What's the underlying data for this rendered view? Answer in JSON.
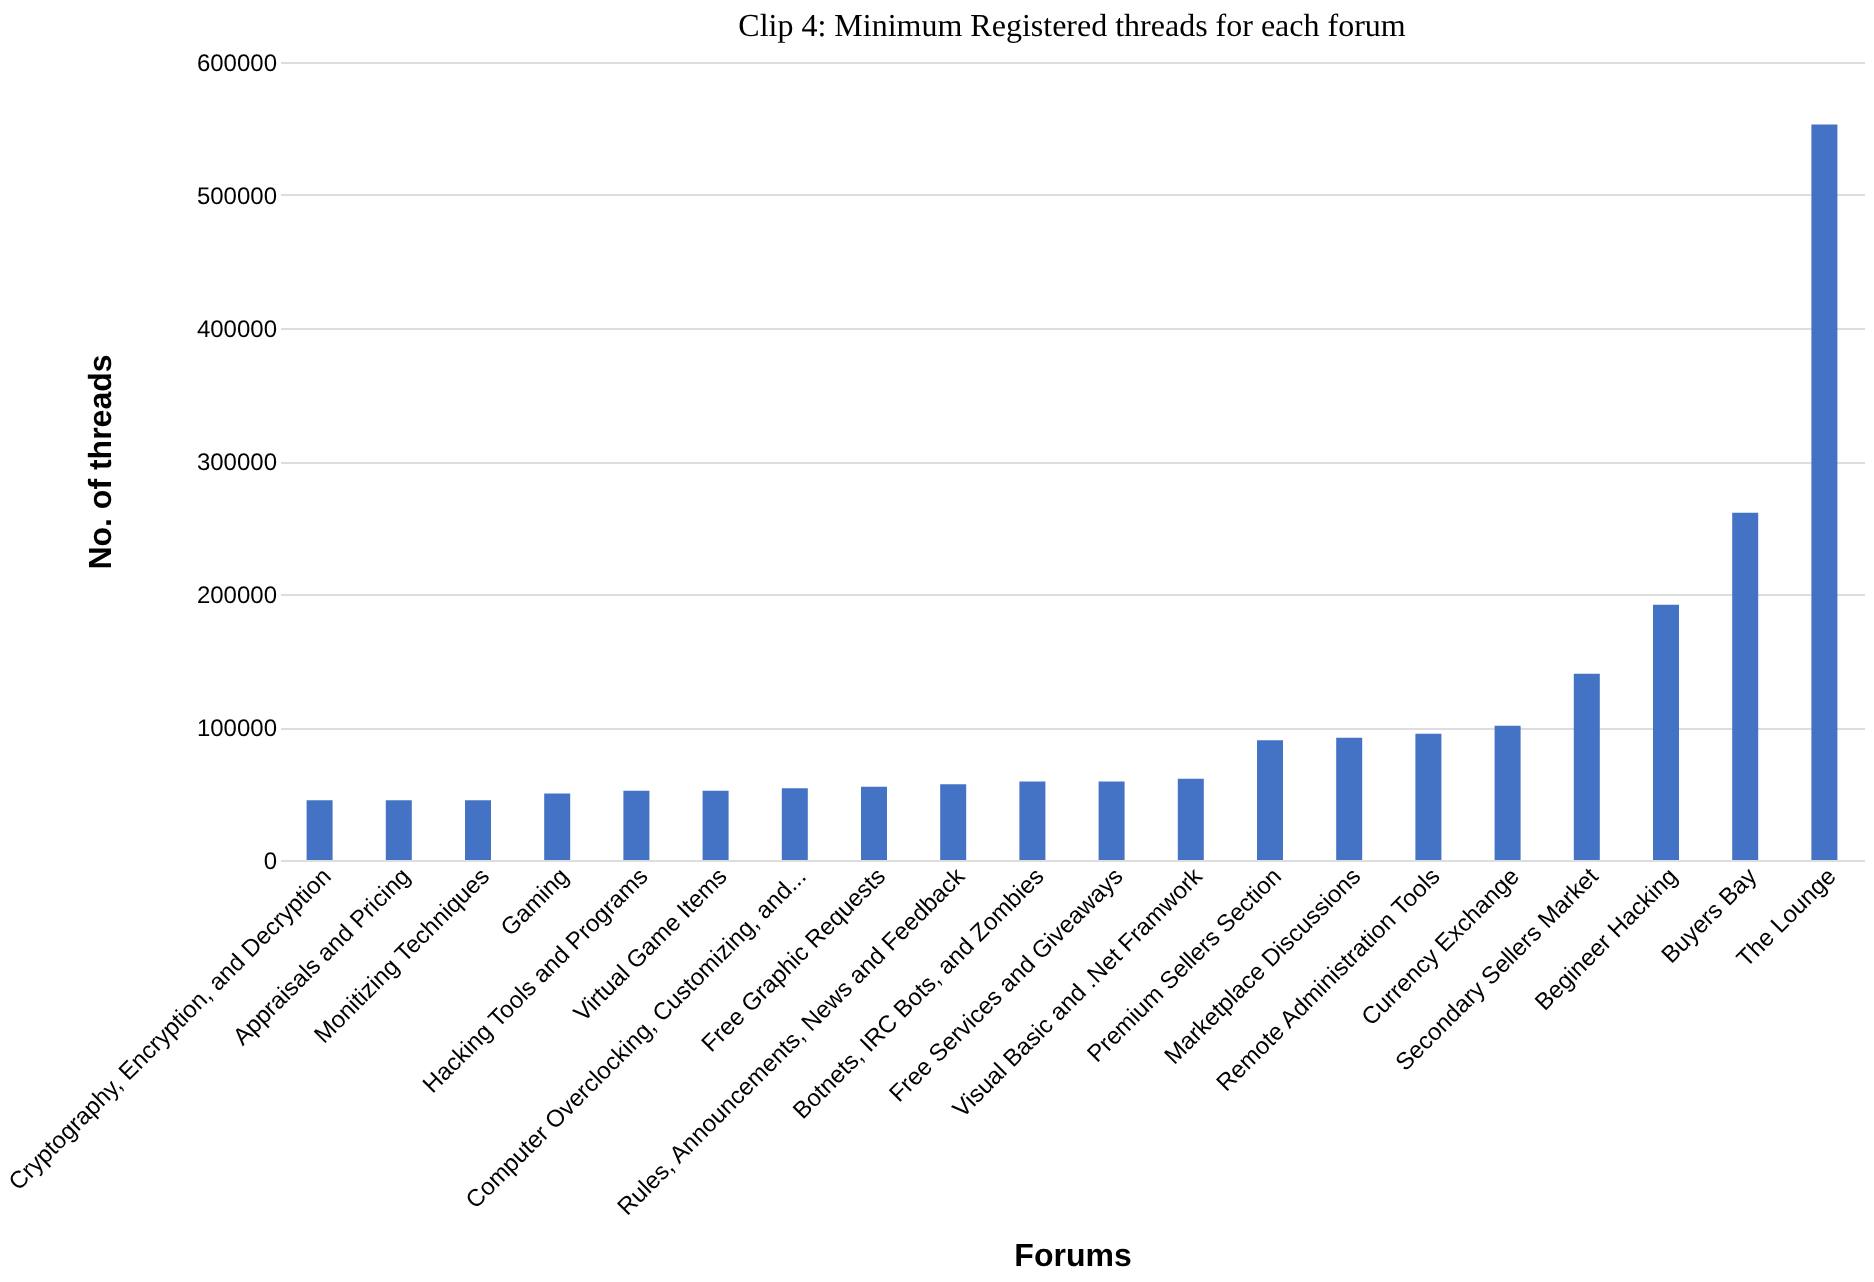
{
  "chart_data": {
    "type": "bar",
    "title": "Clip 4: Minimum Registered threads for each forum",
    "xlabel": "Forums",
    "ylabel": "No. of threads",
    "categories": [
      "Cryptography, Encryption, and Decryption",
      "Appraisals and Pricing",
      "Monitizing Techniques",
      "Gaming",
      "Hacking Tools and Programs",
      "Virtual Game Items",
      "Computer Overclocking, Customizing, and...",
      "Free Graphic Requests",
      "Rules, Announcements, News and Feedback",
      "Botnets, IRC Bots, and Zombies",
      "Free Services and Giveaways",
      "Visual Basic and .Net Framwork",
      "Premium Sellers Section",
      "Marketplace Discussions",
      "Remote Administration Tools",
      "Currency Exchange",
      "Secondary Sellers Market",
      "Begineer Hacking",
      "Buyers Bay",
      "The Lounge"
    ],
    "values": [
      45000,
      45000,
      45000,
      50000,
      52000,
      52000,
      54000,
      55000,
      57000,
      59000,
      59000,
      61000,
      90000,
      92000,
      95000,
      101000,
      140000,
      192000,
      261000,
      553000
    ],
    "color": "#4472c4",
    "ylim": [
      0,
      600000
    ],
    "yticks": [
      0,
      100000,
      200000,
      300000,
      400000,
      500000,
      600000
    ],
    "grid": "y"
  }
}
